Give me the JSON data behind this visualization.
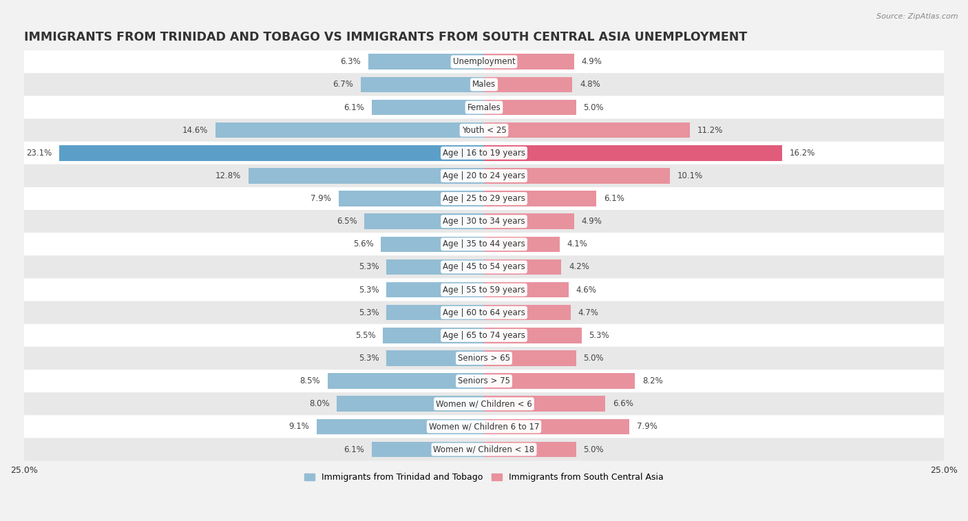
{
  "title": "IMMIGRANTS FROM TRINIDAD AND TOBAGO VS IMMIGRANTS FROM SOUTH CENTRAL ASIA UNEMPLOYMENT",
  "source": "Source: ZipAtlas.com",
  "categories": [
    "Unemployment",
    "Males",
    "Females",
    "Youth < 25",
    "Age | 16 to 19 years",
    "Age | 20 to 24 years",
    "Age | 25 to 29 years",
    "Age | 30 to 34 years",
    "Age | 35 to 44 years",
    "Age | 45 to 54 years",
    "Age | 55 to 59 years",
    "Age | 60 to 64 years",
    "Age | 65 to 74 years",
    "Seniors > 65",
    "Seniors > 75",
    "Women w/ Children < 6",
    "Women w/ Children 6 to 17",
    "Women w/ Children < 18"
  ],
  "left_values": [
    6.3,
    6.7,
    6.1,
    14.6,
    23.1,
    12.8,
    7.9,
    6.5,
    5.6,
    5.3,
    5.3,
    5.3,
    5.5,
    5.3,
    8.5,
    8.0,
    9.1,
    6.1
  ],
  "right_values": [
    4.9,
    4.8,
    5.0,
    11.2,
    16.2,
    10.1,
    6.1,
    4.9,
    4.1,
    4.2,
    4.6,
    4.7,
    5.3,
    5.0,
    8.2,
    6.6,
    7.9,
    5.0
  ],
  "left_color_normal": "#93bdd4",
  "right_color_normal": "#e8929e",
  "left_color_highlight": "#5b9fc8",
  "right_color_highlight": "#e05c7a",
  "highlight_row": 4,
  "left_label": "Immigrants from Trinidad and Tobago",
  "right_label": "Immigrants from South Central Asia",
  "bg_color": "#f2f2f2",
  "row_color_even": "#ffffff",
  "row_color_odd": "#e8e8e8",
  "axis_max": 25.0,
  "bar_height": 0.68,
  "title_fontsize": 12.5,
  "label_fontsize": 8.5,
  "value_fontsize": 8.5,
  "source_fontsize": 8
}
